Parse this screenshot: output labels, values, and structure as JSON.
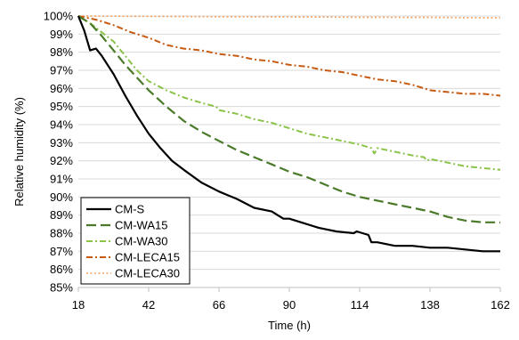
{
  "chart_data": {
    "type": "line",
    "title": "",
    "xlabel": "Time (h)",
    "ylabel": "Relative humidity (%)",
    "xlim": [
      18,
      162
    ],
    "ylim": [
      85,
      100
    ],
    "x_ticks": [
      18,
      42,
      66,
      90,
      114,
      138,
      162
    ],
    "x_tick_labels": [
      "18",
      "42",
      "66",
      "90",
      "114",
      "138",
      "162"
    ],
    "y_ticks": [
      85,
      86,
      87,
      88,
      89,
      90,
      91,
      92,
      93,
      94,
      95,
      96,
      97,
      98,
      99,
      100
    ],
    "y_tick_labels": [
      "85%",
      "86%",
      "87%",
      "88%",
      "89%",
      "90%",
      "91%",
      "92%",
      "93%",
      "94%",
      "95%",
      "96%",
      "97%",
      "98%",
      "99%",
      "100%"
    ],
    "grid": "horizontal",
    "legend_position": "bottom-left",
    "series": [
      {
        "name": "CM-S",
        "color": "#000000",
        "dash": "solid",
        "x": [
          18,
          20,
          22,
          24,
          26,
          30,
          34,
          38,
          42,
          46,
          50,
          54,
          60,
          66,
          72,
          78,
          84,
          86,
          88,
          90,
          94,
          100,
          106,
          112,
          113,
          117,
          118,
          120,
          126,
          132,
          138,
          144,
          150,
          156,
          162
        ],
        "y": [
          100,
          99.2,
          98.1,
          98.2,
          97.8,
          96.8,
          95.6,
          94.5,
          93.5,
          92.7,
          92.0,
          91.5,
          90.8,
          90.3,
          89.9,
          89.4,
          89.2,
          89.0,
          88.8,
          88.8,
          88.6,
          88.3,
          88.1,
          88.0,
          88.1,
          87.9,
          87.5,
          87.5,
          87.3,
          87.3,
          87.2,
          87.2,
          87.1,
          87.0,
          87.0
        ]
      },
      {
        "name": "CM-WA15",
        "color": "#4a7a29",
        "dash": "long-dash",
        "x": [
          18,
          22,
          26,
          30,
          34,
          38,
          42,
          48,
          54,
          60,
          66,
          72,
          78,
          84,
          90,
          96,
          102,
          108,
          114,
          120,
          126,
          132,
          138,
          144,
          150,
          156,
          162
        ],
        "y": [
          100,
          99.6,
          98.9,
          98.1,
          97.3,
          96.6,
          95.9,
          95.0,
          94.2,
          93.6,
          93.1,
          92.6,
          92.2,
          91.8,
          91.4,
          91.1,
          90.7,
          90.3,
          90.0,
          89.8,
          89.6,
          89.4,
          89.2,
          88.9,
          88.7,
          88.6,
          88.6
        ]
      },
      {
        "name": "CM-WA30",
        "color": "#8bc34a",
        "dash": "dash-dot",
        "x": [
          18,
          22,
          26,
          30,
          34,
          38,
          42,
          48,
          54,
          60,
          65,
          66,
          72,
          78,
          84,
          90,
          96,
          102,
          108,
          114,
          118,
          119,
          120,
          126,
          132,
          136,
          137,
          138,
          144,
          150,
          156,
          162
        ],
        "y": [
          100,
          99.6,
          99.1,
          98.6,
          97.8,
          97.0,
          96.4,
          95.9,
          95.5,
          95.2,
          95.0,
          94.8,
          94.6,
          94.3,
          94.1,
          93.8,
          93.5,
          93.3,
          93.1,
          92.9,
          92.7,
          92.4,
          92.7,
          92.5,
          92.3,
          92.2,
          92.0,
          92.1,
          91.9,
          91.7,
          91.6,
          91.5
        ]
      },
      {
        "name": "CM-LECA15",
        "color": "#c65a11",
        "dash": "dash-dot",
        "x": [
          18,
          24,
          30,
          36,
          42,
          48,
          54,
          60,
          66,
          72,
          78,
          84,
          90,
          96,
          102,
          108,
          114,
          120,
          126,
          132,
          136,
          138,
          144,
          150,
          156,
          162
        ],
        "y": [
          100,
          99.8,
          99.5,
          99.1,
          98.8,
          98.4,
          98.2,
          98.1,
          97.9,
          97.8,
          97.6,
          97.5,
          97.3,
          97.2,
          97.0,
          96.9,
          96.7,
          96.5,
          96.4,
          96.2,
          96.0,
          95.9,
          95.8,
          95.7,
          95.7,
          95.6
        ]
      },
      {
        "name": "CM-LECA30",
        "color": "#f4a261",
        "dash": "dotted",
        "x": [
          18,
          42,
          66,
          90,
          114,
          138,
          162
        ],
        "y": [
          100,
          99.98,
          99.96,
          99.95,
          99.93,
          99.92,
          99.9
        ]
      }
    ]
  }
}
